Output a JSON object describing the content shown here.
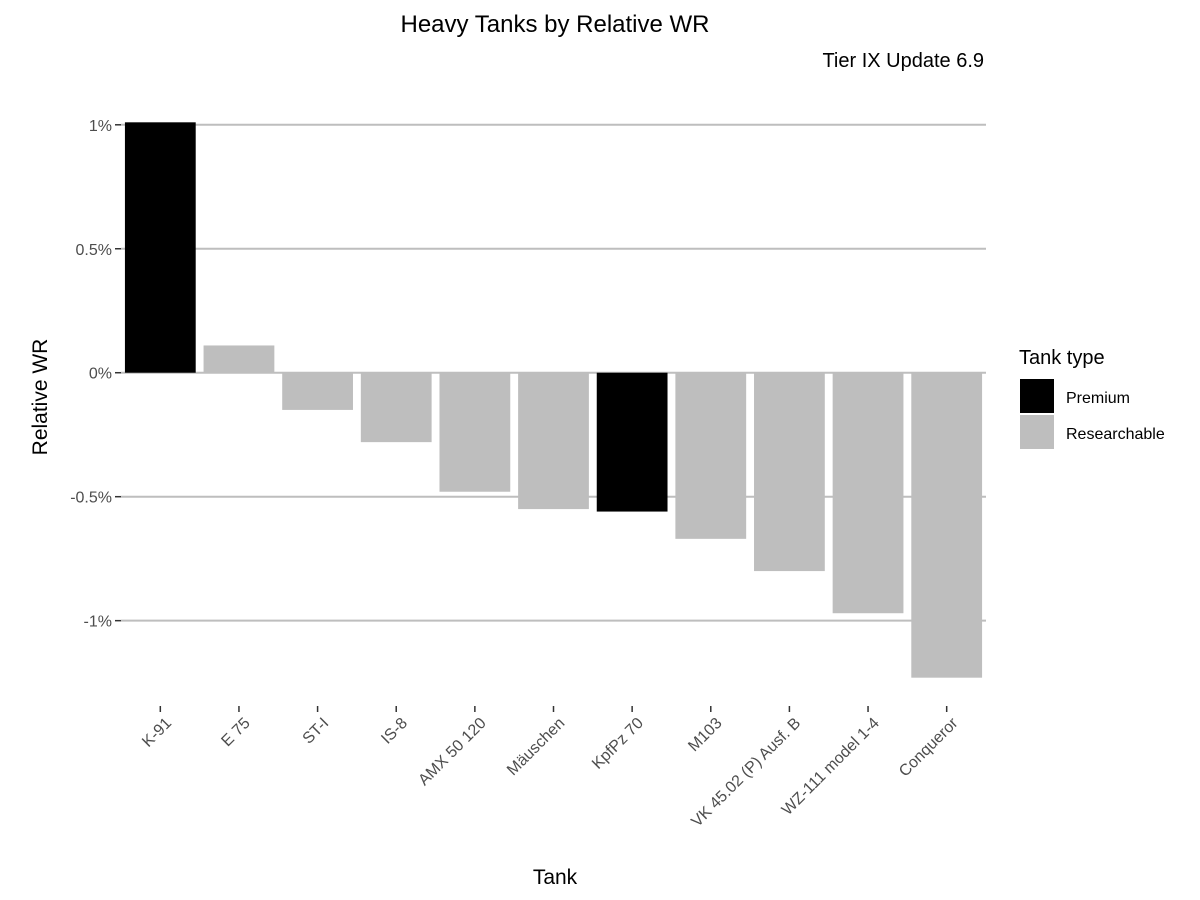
{
  "chart_data": {
    "type": "bar",
    "title": "Heavy Tanks by Relative WR",
    "subtitle": "Tier IX Update 6.9",
    "xlabel": "Tank",
    "ylabel": "Relative WR",
    "categories": [
      "K-91",
      "E 75",
      "ST-I",
      "IS-8",
      "AMX 50 120",
      "Mäuschen",
      "KpfPz 70",
      "M103",
      "VK 45.02 (P) Ausf. B",
      "WZ-111 model 1-4",
      "Conqueror"
    ],
    "values": [
      1.01,
      0.11,
      -0.15,
      -0.28,
      -0.48,
      -0.55,
      -0.56,
      -0.67,
      -0.8,
      -0.97,
      -1.23
    ],
    "groups": [
      "Premium",
      "Researchable",
      "Researchable",
      "Researchable",
      "Researchable",
      "Researchable",
      "Premium",
      "Researchable",
      "Researchable",
      "Researchable",
      "Researchable"
    ],
    "ylim": [
      -1.32,
      1.1
    ],
    "yticks": [
      1,
      0.5,
      0,
      -0.5,
      -1
    ],
    "ytick_labels": [
      "1%",
      "0.5%",
      "0%",
      "-0.5%",
      "-1%"
    ],
    "grid": true,
    "legend": {
      "title": "Tank type",
      "position": "right",
      "items": [
        {
          "label": "Premium",
          "color": "#000000"
        },
        {
          "label": "Researchable",
          "color": "#bebebe"
        }
      ]
    },
    "colors": {
      "Premium": "#000000",
      "Researchable": "#bebebe"
    }
  }
}
